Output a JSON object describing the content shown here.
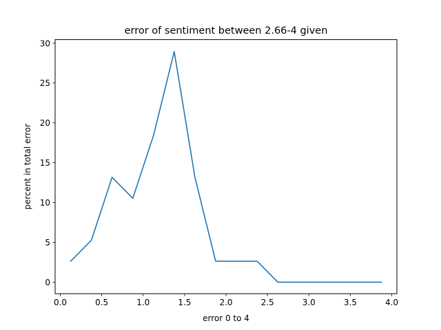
{
  "chart_data": {
    "type": "line",
    "title": "error of sentiment between 2.66-4 given",
    "xlabel": "error 0 to 4",
    "ylabel": "percent in total error",
    "xlim": [
      -0.0625,
      4.0625
    ],
    "ylim": [
      -1.45,
      30.45
    ],
    "x_ticks": [
      0.0,
      0.5,
      1.0,
      1.5,
      2.0,
      2.5,
      3.0,
      3.5,
      4.0
    ],
    "x_tick_labels": [
      "0.0",
      "0.5",
      "1.0",
      "1.5",
      "2.0",
      "2.5",
      "3.0",
      "3.5",
      "4.0"
    ],
    "y_ticks": [
      0,
      5,
      10,
      15,
      20,
      25,
      30
    ],
    "y_tick_labels": [
      "0",
      "5",
      "10",
      "15",
      "20",
      "25",
      "30"
    ],
    "grid": false,
    "legend": "none",
    "series": [
      {
        "color": "#1f77b4",
        "x": [
          0.125,
          0.375,
          0.625,
          0.875,
          1.125,
          1.375,
          1.625,
          1.875,
          2.125,
          2.375,
          2.625,
          2.875,
          3.125,
          3.375,
          3.625,
          3.875
        ],
        "y": [
          2.63,
          5.26,
          13.16,
          10.53,
          18.42,
          28.95,
          13.16,
          2.63,
          2.63,
          2.63,
          0,
          0,
          0,
          0,
          0,
          0
        ]
      }
    ]
  }
}
